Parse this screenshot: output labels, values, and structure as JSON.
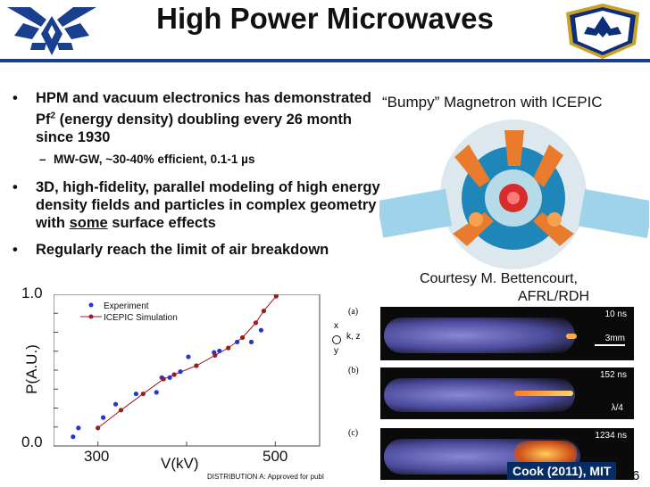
{
  "slide": {
    "title": "High Power Microwaves",
    "bullets": [
      {
        "bullet": "•",
        "text": "HPM and vacuum electronics has demonstrated Pf² (energy density) doubling every 26 month since 1930"
      },
      {
        "bullet": "•",
        "text": "3D, high-fidelity, parallel modeling of high energy density fields and particles in complex geometry with some surface effects",
        "underlined_word": "some"
      },
      {
        "bullet": "•",
        "text": "Regularly reach the limit of air breakdown"
      }
    ],
    "sub_bullet": {
      "bullet": "–",
      "text": "MW-GW, ~30-40% efficient, 0.1-1 µs"
    },
    "magnetron_caption": "“Bumpy” Magnetron with ICEPIC",
    "courtesy": [
      "Courtesy M. Bettencourt,",
      "AFRL/RDH"
    ],
    "page_number": "6",
    "footer": "DISTRIBUTION A:  Approved for publ",
    "cook_label": "Cook (2011), MIT"
  },
  "experiment_panels": {
    "labels": [
      "(a)",
      "(b)",
      "(c)"
    ],
    "times": [
      "10 ns",
      "152 ns",
      "1234 ns"
    ],
    "scale": "3mm",
    "lambda": "λ/4",
    "axes": {
      "x": "x",
      "k": "k, z",
      "y": "y"
    }
  },
  "chart_data": {
    "type": "scatter",
    "ylabel": "P(A.U.)",
    "xlabel": "V(kV)",
    "x_ticks": [
      "300",
      "500"
    ],
    "y_ticks": [
      "0.0",
      "1.0"
    ],
    "xlim": [
      250,
      550
    ],
    "ylim": [
      0,
      1
    ],
    "series": [
      {
        "name": "Experiment",
        "color": "#2233dd",
        "marker": "circle",
        "x": [
          272,
          278,
          306,
          320,
          343,
          366,
          372,
          381,
          393,
          402,
          431,
          437,
          457,
          473,
          484
        ],
        "y": [
          0.05,
          0.11,
          0.18,
          0.27,
          0.34,
          0.35,
          0.45,
          0.45,
          0.49,
          0.59,
          0.62,
          0.63,
          0.69,
          0.69,
          0.77
        ]
      },
      {
        "name": "ICEPIC Simulation",
        "color": "#9a1c1c",
        "marker": "circle-line",
        "x": [
          300,
          326,
          351,
          374,
          386,
          411,
          432,
          447,
          463,
          478,
          487,
          501
        ],
        "y": [
          0.11,
          0.23,
          0.34,
          0.44,
          0.47,
          0.53,
          0.6,
          0.65,
          0.72,
          0.82,
          0.9,
          1.0
        ]
      }
    ]
  }
}
